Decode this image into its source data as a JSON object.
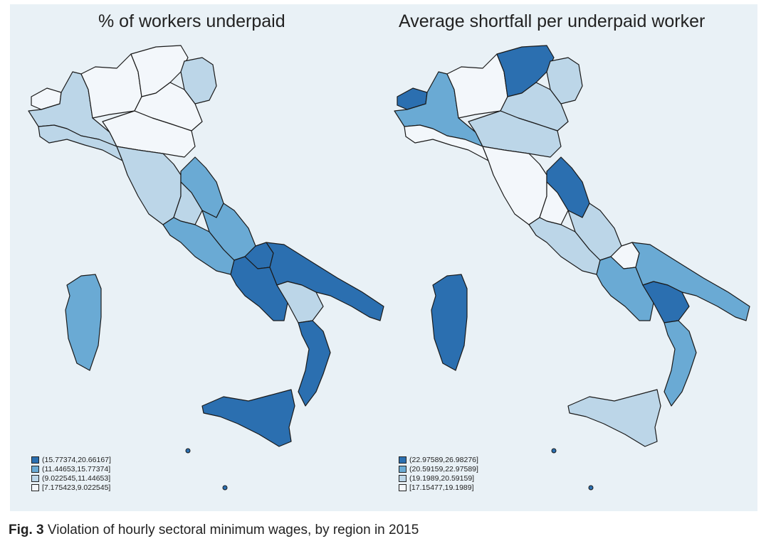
{
  "colors": {
    "class1": "#2b6fb0",
    "class2": "#6aaad4",
    "class3": "#bcd6e8",
    "class4": "#f3f7fb",
    "background": "#e9f1f6"
  },
  "maps": [
    {
      "title": "% of workers underpaid",
      "legend": [
        {
          "label": "(15.77374,20.66167]",
          "class": "class1"
        },
        {
          "label": "(11.44653,15.77374]",
          "class": "class2"
        },
        {
          "label": "(9.022545,11.44653]",
          "class": "class3"
        },
        {
          "label": "[7.175423,9.022545]",
          "class": "class4"
        }
      ],
      "regions": {
        "valle_daosta": "class4",
        "piemonte": "class3",
        "lombardia": "class4",
        "trentino": "class4",
        "veneto": "class4",
        "friuli": "class3",
        "liguria": "class3",
        "emilia": "class4",
        "toscana": "class3",
        "marche": "class2",
        "umbria": "class3",
        "lazio": "class2",
        "abruzzo": "class2",
        "molise": "class1",
        "campania": "class1",
        "puglia": "class1",
        "basilicata": "class3",
        "calabria": "class1",
        "sicilia": "class1",
        "sardegna": "class2"
      }
    },
    {
      "title": "Average shortfall per underpaid worker",
      "legend": [
        {
          "label": "(22.97589,26.98276]",
          "class": "class1"
        },
        {
          "label": "(20.59159,22.97589]",
          "class": "class2"
        },
        {
          "label": "(19.1989,20.59159]",
          "class": "class3"
        },
        {
          "label": "[17.15477,19.1989]",
          "class": "class4"
        }
      ],
      "regions": {
        "valle_daosta": "class1",
        "piemonte": "class2",
        "lombardia": "class4",
        "trentino": "class1",
        "veneto": "class3",
        "friuli": "class3",
        "liguria": "class4",
        "emilia": "class3",
        "toscana": "class4",
        "marche": "class1",
        "umbria": "class4",
        "lazio": "class3",
        "abruzzo": "class3",
        "molise": "class4",
        "campania": "class2",
        "puglia": "class2",
        "basilicata": "class1",
        "calabria": "class2",
        "sicilia": "class3",
        "sardegna": "class1"
      }
    }
  ],
  "caption": {
    "label": "Fig. 3",
    "text": " Violation of hourly sectoral minimum wages, by region in 2015"
  }
}
